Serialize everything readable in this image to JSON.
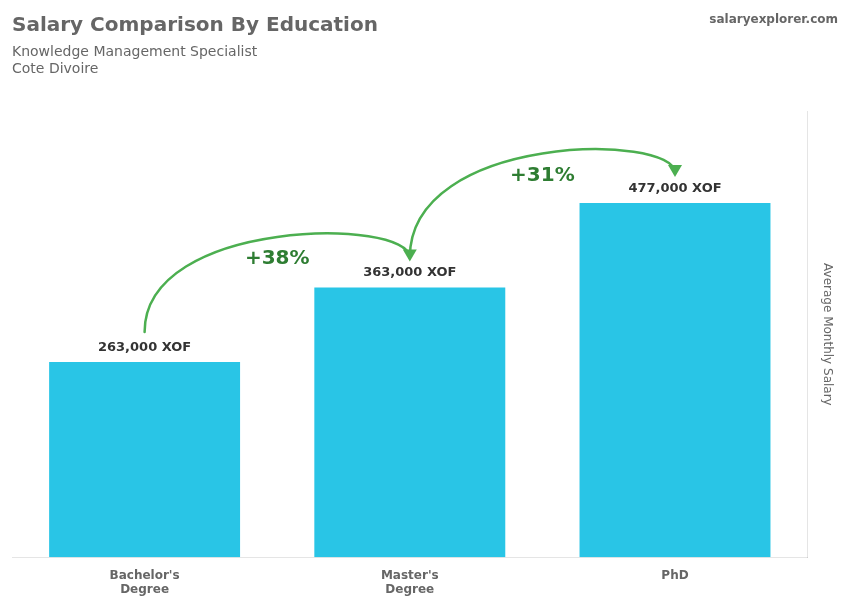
{
  "chart_data": {
    "type": "bar",
    "title": "Salary Comparison By Education",
    "subtitle": [
      "Knowledge Management Specialist",
      "Cote Divoire"
    ],
    "ylabel": "Average Monthly Salary",
    "categories": [
      "Bachelor's\nDegree",
      "Master's\nDegree",
      "PhD"
    ],
    "values": [
      263000,
      363000,
      477000
    ],
    "value_labels": [
      "263,000 XOF",
      "363,000 XOF",
      "477,000 XOF"
    ],
    "data_labels": true,
    "color": "#29c5e6",
    "ylim": [
      0,
      600000
    ],
    "grid": false,
    "tick_labels": "x",
    "annotations": [
      {
        "text": "+38%",
        "between": [
          "Bachelor's\nDegree",
          "Master's\nDegree"
        ]
      },
      {
        "text": "+31%",
        "between": [
          "Master's\nDegree",
          "PhD"
        ]
      },
      {
        "text": "salaryexplorer.com"
      }
    ]
  }
}
